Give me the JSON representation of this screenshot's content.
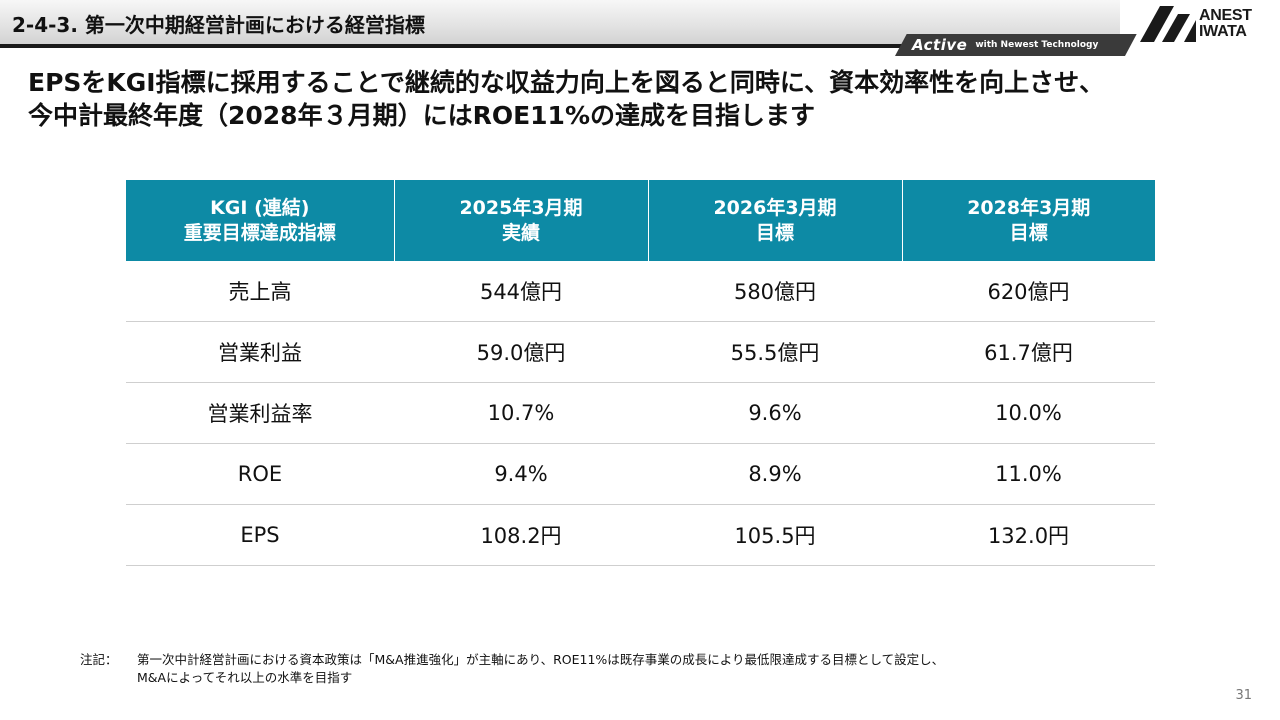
{
  "header": {
    "title": "2-4-3. 第一次中期経営計画における経営指標",
    "tagline_active": "Active",
    "tagline_sub": "with Newest Technology"
  },
  "logo": {
    "line1": "ANEST",
    "line2": "IWATA",
    "mark_icon": "anest-iwata-logo-mark",
    "color": "#1a1a1a"
  },
  "headline": {
    "line1": "EPSをKGI指標に採用することで継続的な収益力向上を図ると同時に、資本効率性を向上させ、",
    "line2": "今中計最終年度（2028年３月期）にはROE11%の達成を目指します"
  },
  "table": {
    "header_color": "#0d8aa5",
    "headers": [
      [
        "KGI (連結)",
        "重要目標達成指標"
      ],
      [
        "2025年3月期",
        "実績"
      ],
      [
        "2026年3月期",
        "目標"
      ],
      [
        "2028年3月期",
        "目標"
      ]
    ],
    "rows": [
      [
        "売上高",
        "544億円",
        "580億円",
        "620億円"
      ],
      [
        "営業利益",
        "59.0億円",
        "55.5億円",
        "61.7億円"
      ],
      [
        "営業利益率",
        "10.7%",
        "9.6%",
        "10.0%"
      ],
      [
        "ROE",
        "9.4%",
        "8.9%",
        "11.0%"
      ],
      [
        "EPS",
        "108.2円",
        "105.5円",
        "132.0円"
      ]
    ]
  },
  "note": {
    "label": "注記：",
    "line1": "第一次中計経営計画における資本政策は「M&A推進強化」が主軸にあり、ROE11%は既存事業の成長により最低限達成する目標として設定し、",
    "line2": "M&Aによってそれ以上の水準を目指す"
  },
  "page_number": "31"
}
